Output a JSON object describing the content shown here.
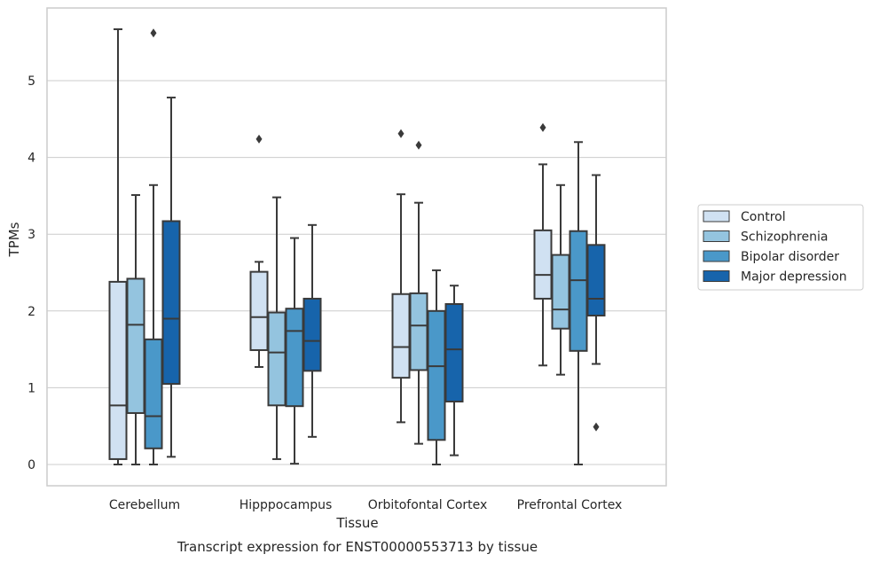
{
  "chart_data": {
    "type": "box",
    "title": "",
    "caption": "Transcript expression for ENST00000553713 by tissue",
    "xlabel": "Tissue",
    "ylabel": "TPMs",
    "ylim": [
      -0.27,
      5.97
    ],
    "yticks": [
      0,
      1,
      2,
      3,
      4,
      5
    ],
    "grid": true,
    "legend_position": "right",
    "categories": [
      "Cerebellum",
      "Hipppocampus",
      "Orbitofontal Cortex",
      "Prefrontal Cortex"
    ],
    "series": [
      {
        "name": "Control",
        "color": "#d0e1f2",
        "boxes": [
          {
            "whislo": 0.0,
            "q1": 0.07,
            "med": 0.77,
            "q3": 2.38,
            "whishi": 5.67,
            "fliers": []
          },
          {
            "whislo": 1.27,
            "q1": 1.49,
            "med": 1.92,
            "q3": 2.51,
            "whishi": 2.64,
            "fliers": [
              4.24
            ]
          },
          {
            "whislo": 0.55,
            "q1": 1.13,
            "med": 1.53,
            "q3": 2.22,
            "whishi": 3.52,
            "fliers": [
              4.31
            ]
          },
          {
            "whislo": 1.29,
            "q1": 2.16,
            "med": 2.47,
            "q3": 3.05,
            "whishi": 3.91,
            "fliers": [
              4.39
            ]
          }
        ]
      },
      {
        "name": "Schizophrenia",
        "color": "#94c4df",
        "boxes": [
          {
            "whislo": 0.0,
            "q1": 0.67,
            "med": 1.82,
            "q3": 2.42,
            "whishi": 3.51,
            "fliers": []
          },
          {
            "whislo": 0.07,
            "q1": 0.77,
            "med": 1.46,
            "q3": 1.98,
            "whishi": 3.48,
            "fliers": []
          },
          {
            "whislo": 0.27,
            "q1": 1.23,
            "med": 1.81,
            "q3": 2.23,
            "whishi": 3.41,
            "fliers": [
              4.16
            ]
          },
          {
            "whislo": 1.17,
            "q1": 1.77,
            "med": 2.02,
            "q3": 2.73,
            "whishi": 3.64,
            "fliers": []
          }
        ]
      },
      {
        "name": "Bipolar disorder",
        "color": "#4a98c9",
        "boxes": [
          {
            "whislo": 0.0,
            "q1": 0.21,
            "med": 0.63,
            "q3": 1.63,
            "whishi": 3.64,
            "fliers": [
              5.62
            ]
          },
          {
            "whislo": 0.01,
            "q1": 0.76,
            "med": 1.74,
            "q3": 2.03,
            "whishi": 2.95,
            "fliers": []
          },
          {
            "whislo": 0.0,
            "q1": 0.32,
            "med": 1.28,
            "q3": 2.0,
            "whishi": 2.53,
            "fliers": []
          },
          {
            "whislo": 0.0,
            "q1": 1.48,
            "med": 2.4,
            "q3": 3.04,
            "whishi": 4.2,
            "fliers": []
          }
        ]
      },
      {
        "name": "Major depression",
        "color": "#1764ab",
        "boxes": [
          {
            "whislo": 0.1,
            "q1": 1.05,
            "med": 1.9,
            "q3": 3.17,
            "whishi": 4.78,
            "fliers": []
          },
          {
            "whislo": 0.36,
            "q1": 1.22,
            "med": 1.61,
            "q3": 2.16,
            "whishi": 3.12,
            "fliers": []
          },
          {
            "whislo": 0.12,
            "q1": 0.82,
            "med": 1.5,
            "q3": 2.09,
            "whishi": 2.33,
            "fliers": []
          },
          {
            "whislo": 1.31,
            "q1": 1.94,
            "med": 2.16,
            "q3": 2.86,
            "whishi": 3.77,
            "fliers": [
              0.49
            ]
          }
        ]
      }
    ]
  }
}
